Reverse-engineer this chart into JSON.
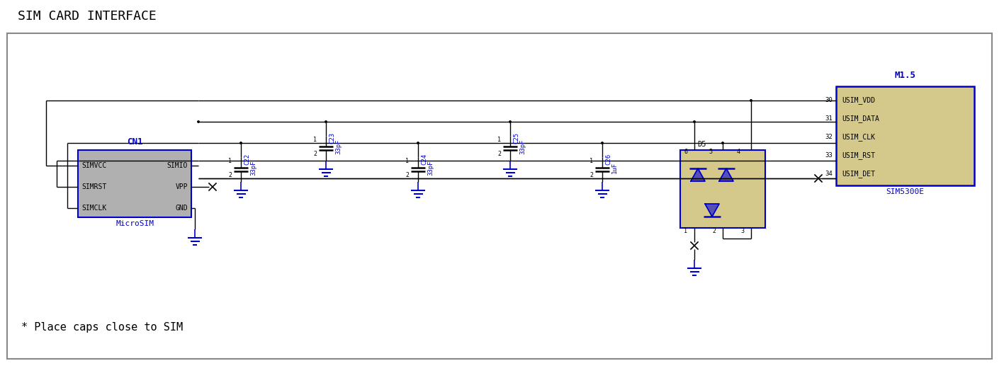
{
  "title": "SIM CARD INTERFACE",
  "bg_color": "#ffffff",
  "border_color": "#aaaaaa",
  "blue": "#0000cc",
  "black": "#000000",
  "comp_fill_cn1": "#b0b0b0",
  "comp_fill_sim53": "#d4c98a",
  "comp_fill_d5": "#d4c98a",
  "note": "* Place caps close to SIM",
  "cn1_label": "CN1",
  "cn1_sublabel": "MicroSIM",
  "cn1_pins_left": [
    "SIMVCC",
    "SIMRST",
    "SIMCLK"
  ],
  "cn1_pins_right": [
    "SIMIO",
    "VPP",
    "GND"
  ],
  "sim_label": "M1.5",
  "sim_sublabel": "SIM5300E",
  "sim_pins": [
    "30  USIM_VDD",
    "31  USIM_DATA",
    "32  USIM_CLK",
    "33  USIM_RST",
    "34  USIM_DET"
  ],
  "cap_labels": [
    "C22",
    "C23",
    "C24",
    "C25",
    "C26"
  ],
  "cap_values": [
    "33pF",
    "33pF",
    "33pF",
    "33pF",
    "1uF"
  ],
  "d5_label": "D5"
}
